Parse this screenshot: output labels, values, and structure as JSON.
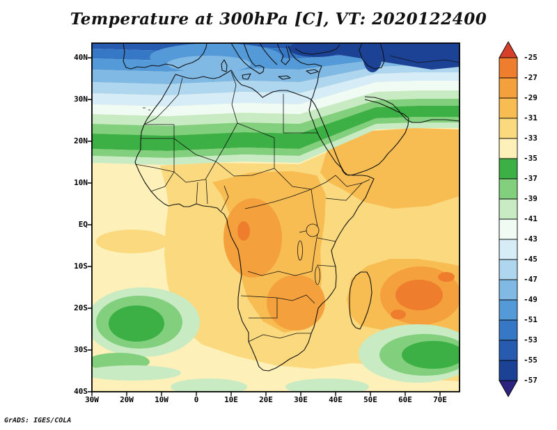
{
  "title": "Temperature at 300hPa [C], VT: 2020122400",
  "credit": "GrADS: IGES/COLA",
  "axes": {
    "lat_ticks": [
      "40N",
      "30N",
      "20N",
      "10N",
      "EQ",
      "10S",
      "20S",
      "30S",
      "40S"
    ],
    "lon_ticks": [
      "30W",
      "20W",
      "10W",
      "0",
      "10E",
      "20E",
      "30E",
      "40E",
      "50E",
      "60E",
      "70E"
    ]
  },
  "colorbar": {
    "tick_labels": [
      "-25",
      "-27",
      "-29",
      "-31",
      "-33",
      "-35",
      "-37",
      "-39",
      "-41",
      "-43",
      "-45",
      "-47",
      "-49",
      "-51",
      "-53",
      "-55",
      "-57"
    ],
    "arrow_top_color": "#d6402b",
    "box_colors_top_to_bottom": [
      "#ee7d2e",
      "#f4a03c",
      "#f8bd52",
      "#fbd97e",
      "#fdf0b8",
      "#3cb044",
      "#82cf7e",
      "#c8ebc4",
      "#effbf3",
      "#d6ecf7",
      "#aed6ee",
      "#80b9e4",
      "#549ad8",
      "#3778c6",
      "#265bb0",
      "#1c4296"
    ],
    "arrow_bottom_color": "#2c2280"
  },
  "chart_data": {
    "type": "heatmap",
    "title": "Temperature at 300hPa [C], VT: 2020122400",
    "variable": "Air temperature at 300 hPa",
    "units": "degC",
    "valid_time": "2020122400",
    "extent": {
      "lon_range": [
        -30,
        75
      ],
      "lat_range": [
        -40,
        45
      ]
    },
    "contour_interval": 2,
    "levels": [
      -57,
      -55,
      -53,
      -51,
      -49,
      -47,
      -45,
      -43,
      -41,
      -39,
      -37,
      -35,
      -33,
      -31,
      -29,
      -27,
      -25
    ],
    "legend_position": "right",
    "grid": "off",
    "grid_sample": {
      "lons": [
        -30,
        -20,
        -10,
        0,
        10,
        20,
        30,
        40,
        50,
        60,
        70
      ],
      "lats": [
        40,
        30,
        20,
        10,
        0,
        -10,
        -20,
        -30,
        -40
      ],
      "values_C": [
        [
          -51,
          -49,
          -47,
          -47,
          -49,
          -49,
          -51,
          -53,
          -55,
          -53,
          -53
        ],
        [
          -45,
          -43,
          -41,
          -41,
          -41,
          -39,
          -39,
          -37,
          -39,
          -39,
          -39
        ],
        [
          -35,
          -35,
          -35,
          -35,
          -35,
          -35,
          -35,
          -33,
          -31,
          -31,
          -31
        ],
        [
          -33,
          -33,
          -33,
          -31,
          -31,
          -31,
          -31,
          -31,
          -31,
          -31,
          -31
        ],
        [
          -33,
          -33,
          -33,
          -31,
          -29,
          -29,
          -31,
          -31,
          -31,
          -31,
          -31
        ],
        [
          -33,
          -33,
          -33,
          -31,
          -29,
          -29,
          -31,
          -31,
          -31,
          -29,
          -31
        ],
        [
          -35,
          -35,
          -33,
          -33,
          -31,
          -29,
          -29,
          -31,
          -29,
          -25,
          -27
        ],
        [
          -33,
          -35,
          -33,
          -33,
          -33,
          -31,
          -31,
          -33,
          -33,
          -35,
          -35
        ],
        [
          -35,
          -33,
          -33,
          -35,
          -35,
          -33,
          -33,
          -35,
          -35,
          -33,
          -33
        ]
      ]
    },
    "features": [
      {
        "name": "warm maximum east of Madagascar",
        "approx_lon": 60,
        "approx_lat": -15,
        "approx_value_C": -25
      },
      {
        "name": "warm patch over Congo basin",
        "approx_lon": 17,
        "approx_lat": -3,
        "approx_value_C": -29
      },
      {
        "name": "warm patch over southern Africa interior",
        "approx_lon": 25,
        "approx_lat": -18,
        "approx_value_C": -29
      },
      {
        "name": "cool green band across Sahel (~15-20N), sloping to ~30N over Arabia",
        "approx_value_C": -36
      },
      {
        "name": "cold air over Mediterranean / Black Sea / Caspian region",
        "approx_value_C": -55
      },
      {
        "name": "cool green patch in SE Atlantic",
        "approx_lon": -18,
        "approx_lat": -27,
        "approx_value_C": -36
      },
      {
        "name": "cool green patch SE of South Africa",
        "approx_lon": 62,
        "approx_lat": -31,
        "approx_value_C": -36
      }
    ]
  }
}
